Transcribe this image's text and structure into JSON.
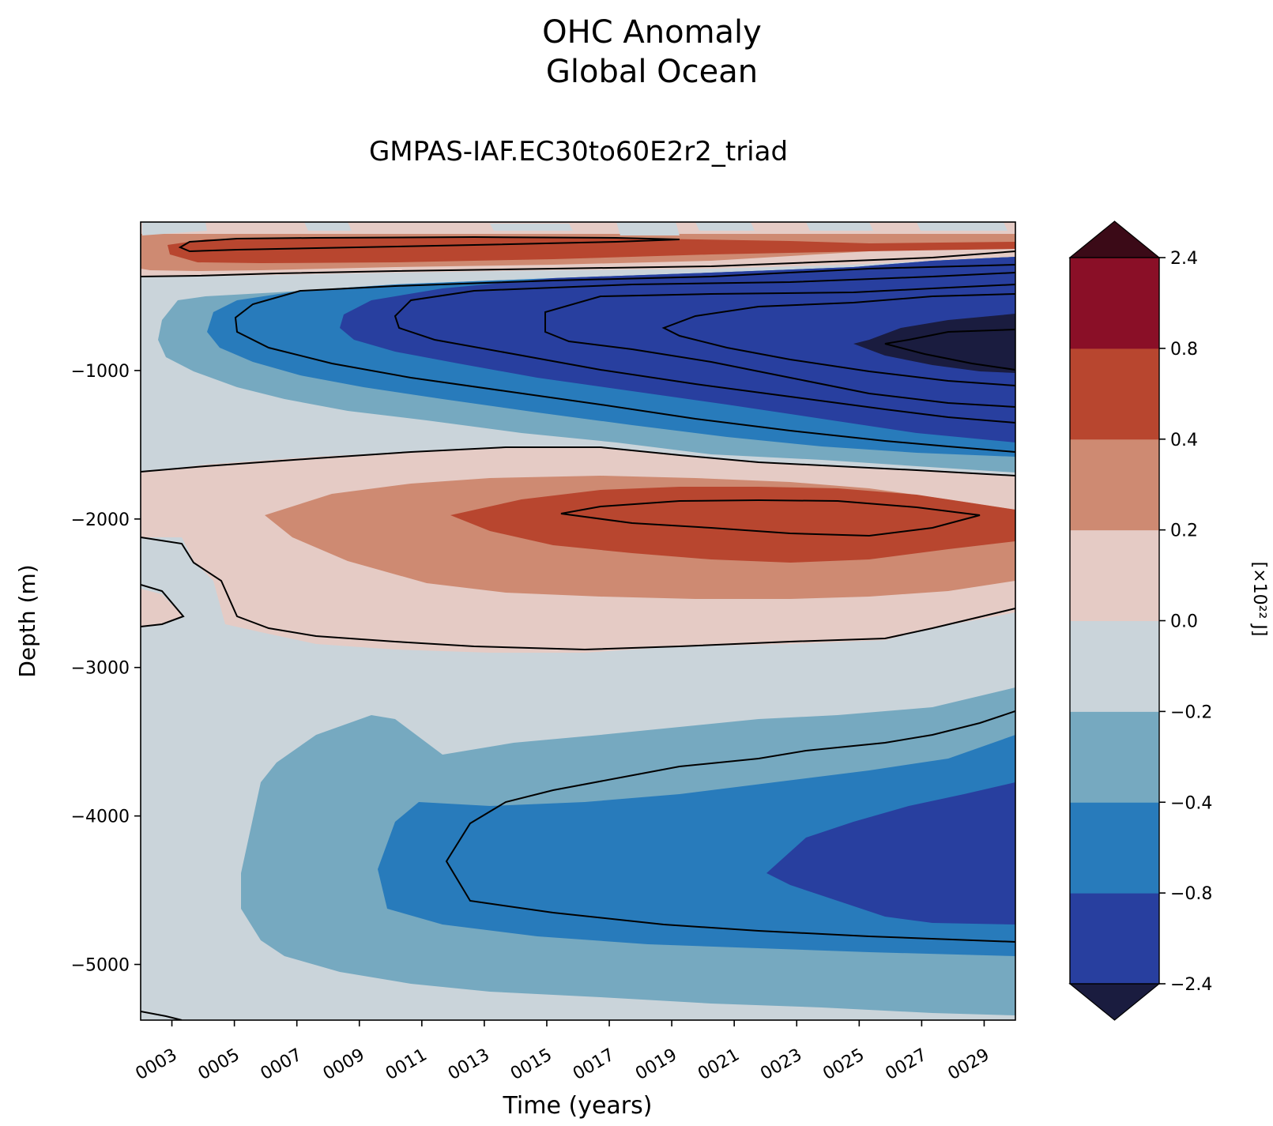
{
  "chart_data": {
    "type": "heatmap",
    "title": "OHC Anomaly",
    "subtitle": "Global Ocean",
    "run_name": "GMPAS-IAF.EC30to60E2r2_triad",
    "xlabel": "Time (years)",
    "ylabel": "Depth (m)",
    "x_ticks": [
      "0003",
      "0005",
      "0007",
      "0009",
      "0011",
      "0013",
      "0015",
      "0017",
      "0019",
      "0021",
      "0023",
      "0025",
      "0027",
      "0029"
    ],
    "y_ticks": [
      -1000,
      -2000,
      -3000,
      -4000,
      -5000
    ],
    "xlim": [
      2,
      30
    ],
    "ylim": [
      -5375,
      0
    ],
    "grid": false,
    "colorbar": {
      "label": "[×10²² J]",
      "levels": [
        -2.4,
        -0.8,
        -0.4,
        -0.2,
        0.0,
        0.2,
        0.4,
        0.8,
        2.4
      ],
      "tick_labels": [
        "−2.4",
        "−0.8",
        "−0.4",
        "−0.2",
        "0.0",
        "0.2",
        "0.4",
        "0.8",
        "2.4"
      ],
      "colors": [
        "#283f9f",
        "#287bbb",
        "#76a9c0",
        "#cad4da",
        "#e5cbc5",
        "#ce8a72",
        "#b8462f",
        "#8a0f27"
      ],
      "under_color": "#1a1c3f",
      "over_color": "#3b0a17",
      "extend": "both"
    },
    "bands": [
      {
        "depth_range": [
          -100,
          -300
        ],
        "anomaly": "positive",
        "peak_band": [
          0.4,
          0.8
        ]
      },
      {
        "depth_range": [
          -300,
          -1600
        ],
        "anomaly": "negative",
        "peak_band": [
          -2.4,
          -0.8
        ],
        "note": "below -2.4 after year 0025"
      },
      {
        "depth_range": [
          -1500,
          -2800
        ],
        "anomaly": "positive",
        "peak_band": [
          0.4,
          0.8
        ]
      },
      {
        "depth_range": [
          -3300,
          -5300
        ],
        "anomaly": "negative",
        "peak_band": [
          -2.4,
          -0.8
        ]
      }
    ]
  }
}
